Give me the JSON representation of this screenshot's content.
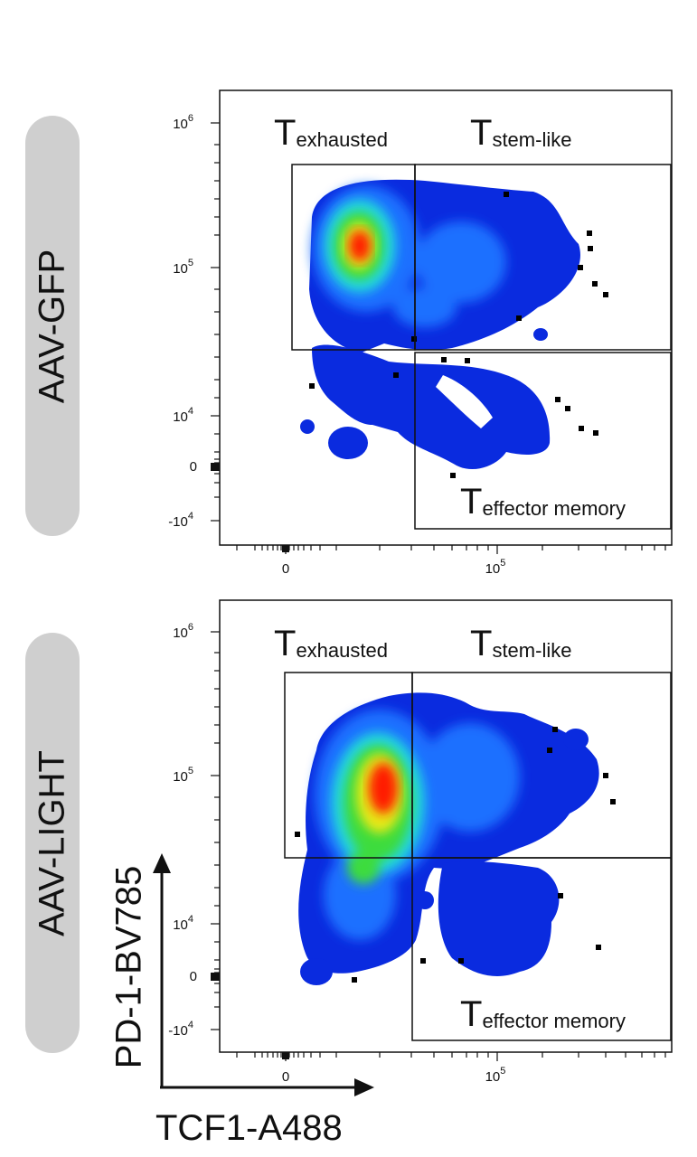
{
  "panels": [
    {
      "label": "AAV-GFP",
      "gates": [
        {
          "T": "T",
          "sub": "exhausted"
        },
        {
          "T": "T",
          "sub": "stem-like"
        },
        {
          "T": "T",
          "sub": "effector memory"
        }
      ]
    },
    {
      "label": "AAV-LIGHT",
      "gates": [
        {
          "T": "T",
          "sub": "exhausted"
        },
        {
          "T": "T",
          "sub": "stem-like"
        },
        {
          "T": "T",
          "sub": "effector memory"
        }
      ]
    }
  ],
  "axes": {
    "x_title": "TCF1-A488",
    "y_title": "PD-1-BV785",
    "y_ticks": [
      {
        "base": "10",
        "exp": "6",
        "value": 1000000
      },
      {
        "base": "10",
        "exp": "5",
        "value": 100000
      },
      {
        "base": "10",
        "exp": "4",
        "value": 10000
      },
      {
        "base": "0",
        "exp": "",
        "value": 0
      },
      {
        "base": "-10",
        "exp": "4",
        "value": -10000
      }
    ],
    "x_ticks": [
      {
        "base": "0",
        "exp": "",
        "value": 0
      },
      {
        "base": "10",
        "exp": "5",
        "value": 100000
      }
    ]
  },
  "chart_data": [
    {
      "type": "scatter",
      "title": "AAV-GFP",
      "xlabel": "TCF1-A488",
      "ylabel": "PD-1-BV785",
      "x_scale": "biexponential",
      "y_scale": "biexponential",
      "ylim": [
        -10000,
        1000000
      ],
      "density_colormap": [
        "#0a2be0",
        "#1aa0ff",
        "#22e0d0",
        "#3cdc3c",
        "#e8e818",
        "#ff7a00",
        "#ff1a00"
      ],
      "density_peak": {
        "x": 8000,
        "y": 130000
      },
      "gates": [
        "T exhausted",
        "T stem-like",
        "T effector memory"
      ]
    },
    {
      "type": "scatter",
      "title": "AAV-LIGHT",
      "xlabel": "TCF1-A488",
      "ylabel": "PD-1-BV785",
      "x_scale": "biexponential",
      "y_scale": "biexponential",
      "ylim": [
        -10000,
        1000000
      ],
      "density_colormap": [
        "#0a2be0",
        "#1aa0ff",
        "#22e0d0",
        "#3cdc3c",
        "#e8e818",
        "#ff7a00",
        "#ff1a00"
      ],
      "density_peak": {
        "x": 15000,
        "y": 75000
      },
      "gates": [
        "T exhausted",
        "T stem-like",
        "T effector memory"
      ]
    }
  ]
}
